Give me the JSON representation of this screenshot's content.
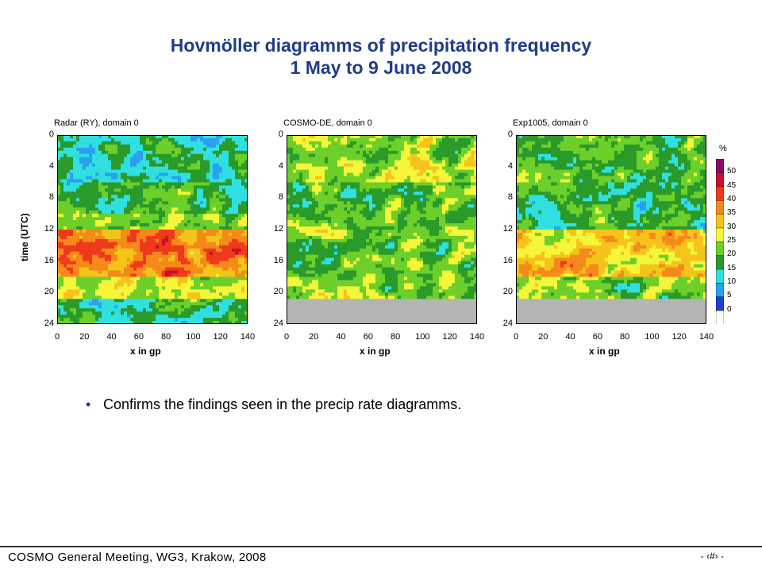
{
  "header": {
    "title_line1": "Hovmöller diagramms of precipitation frequency",
    "title_line2": "1 May to 9  June 2008"
  },
  "chart_data": [
    {
      "type": "heatmap",
      "title": "Radar (RY), domain 0",
      "xlabel": "x in gp",
      "ylabel": "time (UTC)",
      "xlim": [
        0,
        140
      ],
      "ylim": [
        24,
        0
      ],
      "x_ticks": [
        "0",
        "20",
        "40",
        "60",
        "80",
        "100",
        "120",
        "140"
      ],
      "y_ticks": [
        "0",
        "4",
        "8",
        "12",
        "16",
        "20",
        "24"
      ],
      "description_profile": [
        {
          "hour_range": [
            0,
            6
          ],
          "typical_percent": 15
        },
        {
          "hour_range": [
            6,
            10
          ],
          "typical_percent": 18
        },
        {
          "hour_range": [
            10,
            12
          ],
          "typical_percent": 22
        },
        {
          "hour_range": [
            12,
            18
          ],
          "typical_percent": 38
        },
        {
          "hour_range": [
            18,
            21
          ],
          "typical_percent": 26
        },
        {
          "hour_range": [
            21,
            24
          ],
          "typical_percent": 17
        }
      ],
      "missing_data_from_hour": null
    },
    {
      "type": "heatmap",
      "title": "COSMO-DE, domain 0",
      "xlabel": "x in gp",
      "ylabel": "",
      "xlim": [
        0,
        140
      ],
      "ylim": [
        24,
        0
      ],
      "x_ticks": [
        "0",
        "20",
        "40",
        "60",
        "80",
        "100",
        "120",
        "140"
      ],
      "y_ticks": [
        "0",
        "4",
        "8",
        "12",
        "16",
        "20",
        "24"
      ],
      "description_profile": [
        {
          "hour_range": [
            0,
            6
          ],
          "typical_percent": 24
        },
        {
          "hour_range": [
            6,
            12
          ],
          "typical_percent": 20
        },
        {
          "hour_range": [
            12,
            18
          ],
          "typical_percent": 22
        },
        {
          "hour_range": [
            18,
            21
          ],
          "typical_percent": 23
        }
      ],
      "missing_data_from_hour": 21
    },
    {
      "type": "heatmap",
      "title": "Exp1005, domain 0",
      "xlabel": "x in gp",
      "ylabel": "",
      "xlim": [
        0,
        140
      ],
      "ylim": [
        24,
        0
      ],
      "x_ticks": [
        "0",
        "20",
        "40",
        "60",
        "80",
        "100",
        "120",
        "140"
      ],
      "y_ticks": [
        "0",
        "4",
        "8",
        "12",
        "16",
        "20",
        "24"
      ],
      "description_profile": [
        {
          "hour_range": [
            0,
            6
          ],
          "typical_percent": 19
        },
        {
          "hour_range": [
            6,
            12
          ],
          "typical_percent": 17
        },
        {
          "hour_range": [
            12,
            18
          ],
          "typical_percent": 31
        },
        {
          "hour_range": [
            18,
            21
          ],
          "typical_percent": 21
        }
      ],
      "missing_data_from_hour": 21
    }
  ],
  "colorbar": {
    "unit": "%",
    "labels": [
      "0",
      "5",
      "10",
      "15",
      "20",
      "25",
      "30",
      "35",
      "40",
      "45",
      "50"
    ],
    "colors": [
      "#ffffff",
      "#1f3fd0",
      "#2aa0f0",
      "#30e0e0",
      "#2a9a2a",
      "#6ccf2a",
      "#f5f53a",
      "#f5c41a",
      "#f58a1a",
      "#ee3a1a",
      "#cc0f2a",
      "#8a0a6a"
    ]
  },
  "body": {
    "bullet_text": "Confirms the findings seen in the precip rate diagramms."
  },
  "footer": {
    "text": "COSMO General Meeting, WG3, Krakow, 2008",
    "page": "- ‹#› -"
  },
  "colors": {
    "title": "#1f3c8a",
    "missing": "#b4b4b4"
  }
}
